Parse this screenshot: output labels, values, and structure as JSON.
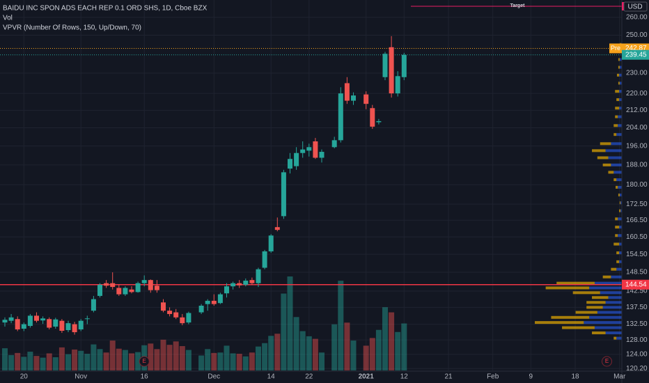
{
  "chart_data": {
    "type": "candlestick",
    "title": "BAIDU INC SPON ADS EACH REP 0.1 ORD SHS, 1D, Cboe BZX",
    "indicators": [
      "Vol",
      "VPVR (Number Of Rows, 150, Up/Down, 70)"
    ],
    "currency": "USD",
    "log_scale": true,
    "grid": true,
    "colors": {
      "up": "#26a69a",
      "down": "#ef5350"
    },
    "x": [
      "2020-10-15",
      "2020-10-16",
      "2020-10-19",
      "2020-10-20",
      "2020-10-21",
      "2020-10-22",
      "2020-10-23",
      "2020-10-26",
      "2020-10-27",
      "2020-10-28",
      "2020-10-29",
      "2020-10-30",
      "2020-11-02",
      "2020-11-03",
      "2020-11-04",
      "2020-11-05",
      "2020-11-06",
      "2020-11-09",
      "2020-11-10",
      "2020-11-11",
      "2020-11-12",
      "2020-11-13",
      "2020-11-16",
      "2020-11-17",
      "2020-11-18",
      "2020-11-19",
      "2020-11-20",
      "2020-11-23",
      "2020-11-24",
      "2020-11-25",
      "2020-11-27",
      "2020-11-30",
      "2020-12-01",
      "2020-12-02",
      "2020-12-03",
      "2020-12-04",
      "2020-12-07",
      "2020-12-08",
      "2020-12-09",
      "2020-12-10",
      "2020-12-11",
      "2020-12-14",
      "2020-12-15",
      "2020-12-16",
      "2020-12-17",
      "2020-12-18",
      "2020-12-21",
      "2020-12-22",
      "2020-12-23",
      "2020-12-24",
      "2020-12-28",
      "2020-12-29",
      "2020-12-30",
      "2020-12-31",
      "2021-01-04",
      "2021-01-05",
      "2021-01-06",
      "2021-01-07",
      "2021-01-08",
      "2021-01-11",
      "2021-01-12"
    ],
    "open": [
      133.0,
      133.5,
      134.0,
      131.2,
      132.0,
      135.0,
      133.6,
      134.0,
      131.8,
      133.5,
      130.8,
      132.5,
      131.0,
      134.0,
      136.5,
      141.0,
      145.0,
      145.0,
      143.5,
      141.5,
      143.0,
      142.2,
      145.0,
      146.0,
      144.2,
      139.0,
      136.5,
      136.0,
      134.5,
      133.0,
      136.0,
      138.5,
      139.5,
      138.8,
      141.8,
      144.0,
      145.0,
      144.5,
      146.0,
      145.0,
      150.0,
      155.5,
      164.0,
      168.0,
      186.5,
      187.5,
      193.0,
      194.0,
      198.0,
      191.0,
      195.5,
      198.5,
      225.0,
      216.5,
      219.5,
      213.0,
      206.5,
      228.0,
      243.5,
      220.0,
      228.0
    ],
    "high": [
      134.5,
      135.5,
      134.8,
      133.0,
      135.5,
      136.0,
      134.8,
      134.5,
      134.4,
      134.0,
      133.5,
      133.2,
      134.0,
      135.0,
      141.0,
      145.0,
      146.0,
      148.5,
      144.5,
      144.0,
      144.0,
      145.5,
      147.5,
      146.2,
      146.0,
      140.0,
      137.5,
      137.0,
      135.5,
      136.2,
      138.5,
      140.0,
      141.5,
      142.0,
      145.0,
      145.5,
      146.0,
      146.5,
      146.8,
      150.0,
      156.0,
      161.5,
      167.5,
      186.0,
      193.0,
      195.5,
      198.0,
      197.0,
      199.5,
      194.5,
      200.0,
      223.0,
      228.0,
      220.5,
      221.0,
      214.5,
      208.0,
      241.0,
      249.5,
      231.0,
      240.5
    ],
    "low": [
      131.8,
      132.8,
      130.5,
      130.5,
      131.5,
      133.0,
      132.6,
      131.0,
      131.2,
      130.0,
      130.2,
      129.5,
      130.5,
      132.5,
      136.0,
      140.5,
      143.5,
      143.0,
      141.0,
      141.0,
      141.8,
      142.0,
      144.0,
      142.0,
      142.0,
      136.0,
      134.8,
      134.0,
      132.2,
      132.5,
      135.5,
      136.5,
      138.0,
      138.5,
      140.5,
      143.0,
      143.5,
      144.0,
      144.5,
      143.8,
      149.5,
      155.0,
      162.5,
      167.0,
      184.5,
      186.0,
      191.0,
      191.5,
      190.5,
      189.0,
      195.0,
      197.5,
      215.0,
      214.5,
      212.5,
      203.5,
      205.5,
      226.5,
      218.0,
      218.5,
      226.5
    ],
    "close": [
      133.8,
      134.5,
      131.0,
      132.5,
      135.0,
      133.5,
      134.2,
      131.5,
      133.9,
      130.6,
      132.8,
      130.2,
      133.5,
      134.2,
      140.0,
      144.5,
      144.2,
      143.8,
      141.5,
      143.5,
      142.2,
      145.0,
      146.0,
      142.8,
      142.8,
      136.5,
      135.5,
      134.5,
      132.8,
      135.8,
      138.0,
      139.5,
      138.5,
      141.5,
      144.0,
      145.0,
      144.3,
      145.8,
      145.0,
      149.5,
      155.5,
      161.0,
      163.0,
      185.0,
      190.5,
      193.0,
      194.5,
      195.5,
      191.0,
      193.5,
      198.5,
      220.0,
      216.5,
      219.0,
      215.0,
      204.5,
      207.0,
      240.0,
      220.0,
      228.5,
      239.45
    ],
    "volume": [
      5.2,
      3.6,
      4.1,
      3.2,
      4.4,
      3.4,
      3.0,
      4.0,
      3.1,
      5.4,
      3.8,
      4.9,
      4.6,
      3.9,
      6.1,
      5.0,
      4.2,
      7.0,
      5.1,
      4.8,
      4.0,
      4.3,
      5.9,
      6.3,
      5.0,
      7.2,
      6.0,
      6.8,
      5.7,
      4.8,
      3.5,
      5.0,
      4.1,
      4.2,
      5.8,
      4.0,
      3.9,
      3.3,
      4.2,
      5.6,
      6.4,
      8.1,
      8.6,
      18.0,
      22.0,
      12.5,
      9.2,
      8.0,
      7.4,
      4.2,
      10.8,
      21.0,
      11.2,
      7.0,
      5.8,
      7.6,
      9.5,
      14.8,
      13.6,
      9.0,
      11.0
    ],
    "xticks": [
      {
        "value": "2020-10-20",
        "label": "20"
      },
      {
        "value": "2020-11-02",
        "label": "Nov"
      },
      {
        "value": "2020-11-16",
        "label": "16"
      },
      {
        "value": "2020-12-01",
        "label": "Dec"
      },
      {
        "value": "2020-12-14",
        "label": "14"
      },
      {
        "value": "2020-12-22",
        "label": "22"
      },
      {
        "value": "2021-01-04",
        "label": "2021"
      },
      {
        "value": "2021-01-12",
        "label": "12"
      },
      {
        "value": "2021-01-21",
        "label": "21"
      },
      {
        "value": "2021-02-01",
        "label": "Feb"
      },
      {
        "value": "2021-02-09",
        "label": "9"
      },
      {
        "value": "2021-02-18",
        "label": "18"
      },
      {
        "value": "2021-03-01",
        "label": "Mar"
      }
    ],
    "ylim": [
      119.7,
      270.1
    ],
    "yticks": [
      {
        "value": 120.2,
        "label": "120.20"
      },
      {
        "value": 124,
        "label": "124.00"
      },
      {
        "value": 128,
        "label": "128.00"
      },
      {
        "value": 132.5,
        "label": "132.50"
      },
      {
        "value": 137.5,
        "label": "137.50"
      },
      {
        "value": 142.5,
        "label": "142.50"
      },
      {
        "value": 148.5,
        "label": "148.50"
      },
      {
        "value": 154.5,
        "label": "154.50"
      },
      {
        "value": 160.5,
        "label": "160.50"
      },
      {
        "value": 166.5,
        "label": "166.50"
      },
      {
        "value": 172.5,
        "label": "172.50"
      },
      {
        "value": 180,
        "label": "180.00"
      },
      {
        "value": 188,
        "label": "188.00"
      },
      {
        "value": 196,
        "label": "196.00"
      },
      {
        "value": 204,
        "label": "204.00"
      },
      {
        "value": 212,
        "label": "212.00"
      },
      {
        "value": 220,
        "label": "220.00"
      },
      {
        "value": 230,
        "label": "230.00"
      },
      {
        "value": 250,
        "label": "250.00"
      },
      {
        "value": 260,
        "label": "260.00"
      }
    ],
    "price_lines": [
      {
        "label": "Pre",
        "value": 242.87,
        "color": "#f7a21b"
      },
      {
        "value": 239.45,
        "color": "#26a69a"
      },
      {
        "value": 144.54,
        "color": "#f23645"
      }
    ],
    "target": {
      "label": "Target",
      "value": 266.4,
      "color": "#e91e63"
    },
    "earnings": [
      {
        "x": "2020-11-16",
        "label": "E"
      },
      {
        "x": "2021-02-25",
        "label": "E"
      }
    ],
    "volume_profile": {
      "colors": {
        "up": "#2962ff",
        "down": "#f7b500"
      },
      "prices": [
        128.5,
        130,
        131.5,
        133,
        134.5,
        136,
        137.5,
        139,
        140.5,
        142,
        143.5,
        145,
        147,
        149.5,
        152,
        155,
        158,
        161,
        164,
        167,
        170,
        173,
        176,
        179,
        182,
        185,
        188,
        191,
        194,
        197,
        201,
        205,
        209,
        213,
        217,
        221,
        225,
        229,
        233,
        237,
        241,
        245
      ],
      "up": [
        2,
        6,
        10,
        14,
        12,
        9,
        7,
        6,
        5,
        8,
        12,
        10,
        4,
        2,
        1,
        1,
        1,
        1.5,
        1,
        1.5,
        0.5,
        0.5,
        0.8,
        1.5,
        2,
        3,
        4,
        5,
        6,
        4,
        2,
        1.5,
        1.5,
        1,
        1,
        1,
        0.8,
        1,
        0.8,
        0.8,
        0.5,
        0.3
      ],
      "down": [
        1,
        5,
        12,
        18,
        14,
        8,
        6,
        7,
        6,
        10,
        16,
        14,
        3,
        2,
        1,
        1,
        2,
        1,
        1.5,
        1,
        0.5,
        0.3,
        0.5,
        0.8,
        1,
        2,
        3,
        4,
        5,
        4,
        1,
        1.5,
        1,
        1.5,
        1,
        1.5,
        0.5,
        0.8,
        0.5,
        0.5,
        0.5,
        0.4
      ]
    }
  }
}
